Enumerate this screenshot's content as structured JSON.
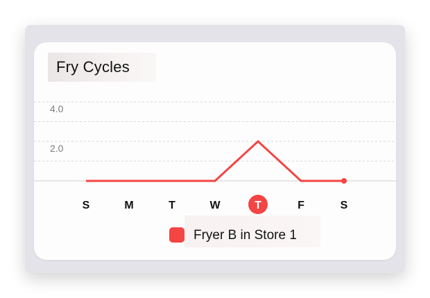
{
  "card": {
    "title": "Fry Cycles"
  },
  "legend": {
    "label": "Fryer B in Store 1",
    "swatch_color": "#f44444"
  },
  "selected_day_index": 4,
  "colors": {
    "series": "#f44444",
    "selected_day": "#f44444",
    "grid": "#d7d7d7"
  },
  "chart_data": {
    "type": "line",
    "categories": [
      "S",
      "M",
      "T",
      "W",
      "T",
      "F",
      "S"
    ],
    "series": [
      {
        "name": "Fryer B in Store 1",
        "values": [
          0,
          0,
          0,
          0,
          2,
          0,
          0
        ]
      }
    ],
    "y_ticks": [
      "4.0",
      "2.0"
    ],
    "ylim": [
      0,
      4
    ],
    "grid": true,
    "legend_position": "bottom"
  }
}
